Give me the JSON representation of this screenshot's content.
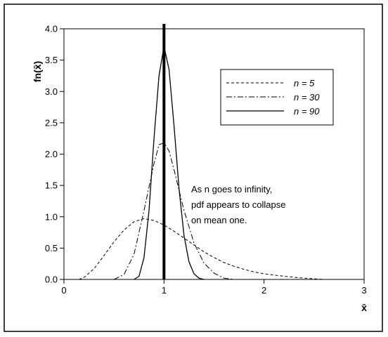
{
  "chart_data": {
    "type": "line",
    "title": "",
    "xlabel": "x̄",
    "ylabel": "fn(x̄)",
    "xlim": [
      0,
      3
    ],
    "ylim": [
      0,
      4.0
    ],
    "x_ticks": [
      "0",
      "1",
      "2",
      "3"
    ],
    "y_ticks": [
      "0.0",
      "0.5",
      "1.0",
      "1.5",
      "2.0",
      "2.5",
      "3.0",
      "3.5",
      "4.0"
    ],
    "grid": false,
    "legend_position": "top-right",
    "series": [
      {
        "name": "n = 5",
        "style": "dashed",
        "points": [
          [
            0.15,
            0.0
          ],
          [
            0.2,
            0.03
          ],
          [
            0.3,
            0.17
          ],
          [
            0.4,
            0.38
          ],
          [
            0.5,
            0.6
          ],
          [
            0.6,
            0.79
          ],
          [
            0.7,
            0.92
          ],
          [
            0.8,
            0.97
          ],
          [
            0.9,
            0.94
          ],
          [
            1.0,
            0.87
          ],
          [
            1.1,
            0.77
          ],
          [
            1.2,
            0.66
          ],
          [
            1.3,
            0.55
          ],
          [
            1.4,
            0.44
          ],
          [
            1.5,
            0.35
          ],
          [
            1.6,
            0.27
          ],
          [
            1.7,
            0.21
          ],
          [
            1.8,
            0.16
          ],
          [
            1.9,
            0.12
          ],
          [
            2.0,
            0.09
          ],
          [
            2.2,
            0.05
          ],
          [
            2.4,
            0.02
          ],
          [
            2.6,
            0.0
          ]
        ]
      },
      {
        "name": "n = 30",
        "style": "dash-dot",
        "points": [
          [
            0.5,
            0.0
          ],
          [
            0.6,
            0.08
          ],
          [
            0.7,
            0.4
          ],
          [
            0.8,
            1.1
          ],
          [
            0.9,
            1.85
          ],
          [
            0.95,
            2.15
          ],
          [
            1.0,
            2.18
          ],
          [
            1.05,
            2.05
          ],
          [
            1.1,
            1.75
          ],
          [
            1.2,
            1.1
          ],
          [
            1.3,
            0.58
          ],
          [
            1.4,
            0.26
          ],
          [
            1.5,
            0.1
          ],
          [
            1.6,
            0.02
          ],
          [
            1.7,
            0.0
          ]
        ]
      },
      {
        "name": "n = 90",
        "style": "solid",
        "points": [
          [
            0.7,
            0.0
          ],
          [
            0.75,
            0.05
          ],
          [
            0.8,
            0.35
          ],
          [
            0.85,
            1.1
          ],
          [
            0.9,
            2.25
          ],
          [
            0.95,
            3.25
          ],
          [
            1.0,
            3.72
          ],
          [
            1.05,
            3.35
          ],
          [
            1.1,
            2.45
          ],
          [
            1.15,
            1.45
          ],
          [
            1.2,
            0.7
          ],
          [
            1.25,
            0.28
          ],
          [
            1.3,
            0.09
          ],
          [
            1.35,
            0.02
          ],
          [
            1.4,
            0.0
          ]
        ]
      }
    ],
    "vertical_line": {
      "x": 1
    },
    "annotation": [
      "As n goes to infinity,",
      "pdf appears to collapse",
      "on mean one."
    ]
  }
}
